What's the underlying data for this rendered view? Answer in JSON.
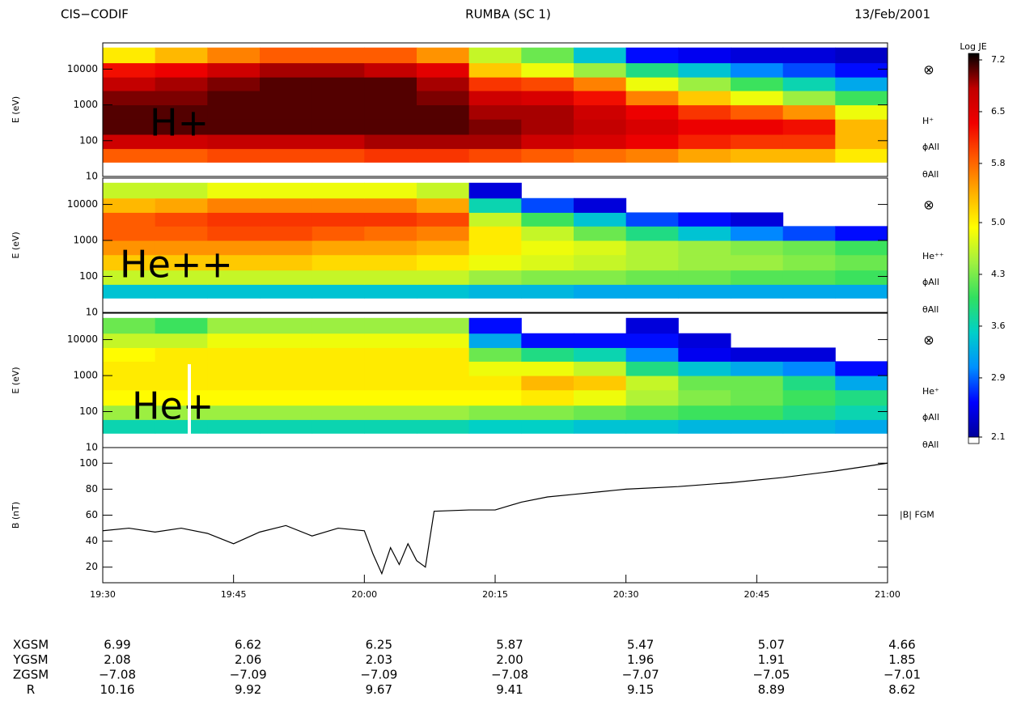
{
  "header": {
    "left": "CIS−CODIF",
    "center": "RUMBA (SC 1)",
    "right": "13/Feb/2001"
  },
  "colorbar": {
    "title": "Log JE",
    "zlim": [
      2.1,
      7.2
    ],
    "ticks": [
      2.1,
      2.9,
      3.6,
      4.3,
      {
        "value": 5,
        "label": "5.0"
      },
      5.8,
      6.5,
      7.2
    ],
    "colors": [
      "#00009a",
      "#0000ff",
      "#0090ff",
      "#00d0c8",
      "#30e060",
      "#a0f040",
      "#ffff00",
      "#ffb000",
      "#ff5a00",
      "#f00000",
      "#c00000",
      "#000000"
    ]
  },
  "chart_data": [
    {
      "type": "heatmap",
      "label": "H+",
      "ylabel": "E (eV)",
      "log_y": true,
      "ylim": [
        10,
        54000
      ],
      "yticks": [
        10,
        100,
        1000,
        10000
      ],
      "side_labels": [
        "⊗",
        "H⁺",
        "ϕAll",
        "θAll"
      ],
      "x_bins": [
        "19:30",
        "19:36",
        "19:42",
        "19:48",
        "19:54",
        "20:00",
        "20:06",
        "20:12",
        "20:18",
        "20:24",
        "20:30",
        "20:36",
        "20:42",
        "20:48",
        "20:54",
        "21:00"
      ],
      "y_bins": [
        25,
        60,
        150,
        400,
        1000,
        2500,
        6000,
        15000,
        40000
      ],
      "z": [
        [
          5.8,
          5.8,
          5.9,
          5.9,
          5.9,
          6.0,
          6.0,
          5.9,
          5.8,
          5.7,
          5.6,
          5.4,
          5.3,
          5.3,
          5.0
        ],
        [
          6.6,
          6.6,
          6.7,
          6.7,
          6.7,
          6.8,
          6.8,
          6.8,
          6.6,
          6.5,
          6.3,
          6.1,
          6.0,
          6.0,
          5.3
        ],
        [
          7.0,
          7.0,
          7.0,
          7.0,
          7.0,
          7.0,
          7.0,
          6.9,
          6.8,
          6.7,
          6.5,
          6.3,
          6.3,
          6.2,
          5.3
        ],
        [
          7.0,
          7.0,
          7.0,
          7.0,
          7.0,
          7.0,
          7.0,
          6.8,
          6.8,
          6.6,
          6.3,
          6.0,
          5.8,
          5.5,
          4.8
        ],
        [
          6.9,
          6.9,
          7.0,
          7.0,
          7.0,
          7.0,
          6.9,
          6.6,
          6.5,
          6.2,
          5.6,
          5.2,
          4.8,
          4.4,
          4.0
        ],
        [
          6.7,
          6.8,
          6.9,
          7.0,
          7.0,
          7.0,
          6.8,
          6.0,
          5.9,
          5.6,
          4.8,
          4.4,
          4.0,
          3.6,
          3.2
        ],
        [
          6.2,
          6.3,
          6.6,
          6.8,
          6.8,
          6.7,
          6.4,
          5.2,
          4.8,
          4.4,
          3.8,
          3.4,
          3.0,
          2.8,
          2.6
        ],
        [
          5.0,
          5.3,
          5.6,
          5.8,
          5.8,
          5.8,
          5.5,
          4.6,
          4.2,
          3.4,
          2.6,
          2.5,
          2.4,
          2.4,
          2.3
        ]
      ]
    },
    {
      "type": "heatmap",
      "label": "He++",
      "ylabel": "E (eV)",
      "log_y": true,
      "ylim": [
        10,
        54000
      ],
      "yticks": [
        10,
        100,
        1000,
        10000
      ],
      "side_labels": [
        "⊗",
        "He⁺⁺",
        "ϕAll",
        "θAll"
      ],
      "x_bins": [
        "19:30",
        "19:36",
        "19:42",
        "19:48",
        "19:54",
        "20:00",
        "20:06",
        "20:12",
        "20:18",
        "20:24",
        "20:30",
        "20:36",
        "20:42",
        "20:48",
        "20:54",
        "21:00"
      ],
      "y_bins": [
        25,
        60,
        150,
        400,
        1000,
        2500,
        6000,
        15000,
        40000
      ],
      "z": [
        [
          3.4,
          3.4,
          3.4,
          3.4,
          3.4,
          3.4,
          3.4,
          3.3,
          3.3,
          3.2,
          3.2,
          3.2,
          3.2,
          3.2,
          3.2
        ],
        [
          4.6,
          4.6,
          4.6,
          4.6,
          4.6,
          4.6,
          4.6,
          4.4,
          4.3,
          4.3,
          4.2,
          4.2,
          4.1,
          4.1,
          4.0
        ],
        [
          5.2,
          5.2,
          5.2,
          5.2,
          5.1,
          5.1,
          5.0,
          4.8,
          4.7,
          4.6,
          4.5,
          4.4,
          4.4,
          4.3,
          4.2
        ],
        [
          5.5,
          5.5,
          5.5,
          5.5,
          5.4,
          5.4,
          5.3,
          5.0,
          4.8,
          4.7,
          4.5,
          4.4,
          4.3,
          4.2,
          4.0
        ],
        [
          5.8,
          5.8,
          5.9,
          5.9,
          5.8,
          5.7,
          5.6,
          5.0,
          4.6,
          4.2,
          3.8,
          3.4,
          3.0,
          2.8,
          2.6
        ],
        [
          5.8,
          5.9,
          6.0,
          6.0,
          6.0,
          6.0,
          5.9,
          4.6,
          4.0,
          3.4,
          2.8,
          2.6,
          2.4,
          null,
          null
        ],
        [
          5.3,
          5.4,
          5.6,
          5.6,
          5.6,
          5.6,
          5.4,
          3.6,
          2.8,
          2.4,
          null,
          null,
          null,
          null,
          null
        ],
        [
          4.6,
          4.6,
          4.8,
          4.8,
          4.8,
          4.8,
          4.6,
          2.4,
          null,
          null,
          null,
          null,
          null,
          null,
          null
        ]
      ]
    },
    {
      "type": "heatmap",
      "label": "He+",
      "ylabel": "E (eV)",
      "log_y": true,
      "ylim": [
        10,
        54000
      ],
      "yticks": [
        10,
        100,
        1000,
        10000
      ],
      "side_labels": [
        "⊗",
        "He⁺",
        "ϕAll",
        "θAll"
      ],
      "x_bins": [
        "19:30",
        "19:36",
        "19:42",
        "19:48",
        "19:54",
        "20:00",
        "20:06",
        "20:12",
        "20:18",
        "20:24",
        "20:30",
        "20:36",
        "20:42",
        "20:48",
        "20:54",
        "21:00"
      ],
      "y_bins": [
        25,
        60,
        150,
        400,
        1000,
        2500,
        6000,
        15000,
        40000
      ],
      "z": [
        [
          3.6,
          3.6,
          3.6,
          3.6,
          3.6,
          3.6,
          3.6,
          3.5,
          3.5,
          3.4,
          3.4,
          3.3,
          3.3,
          3.3,
          3.2
        ],
        [
          4.4,
          4.4,
          4.4,
          4.4,
          4.4,
          4.4,
          4.4,
          4.3,
          4.3,
          4.2,
          4.1,
          4.0,
          4.0,
          3.8,
          3.6
        ],
        [
          4.9,
          4.9,
          4.9,
          4.9,
          4.9,
          4.9,
          4.9,
          4.9,
          5.0,
          4.8,
          4.5,
          4.3,
          4.2,
          4.0,
          3.8
        ],
        [
          5.0,
          5.0,
          5.0,
          5.0,
          5.0,
          5.0,
          5.0,
          5.0,
          5.3,
          5.2,
          4.6,
          4.2,
          4.2,
          3.8,
          3.2
        ],
        [
          5.0,
          5.0,
          5.0,
          5.0,
          5.0,
          5.0,
          5.0,
          4.8,
          4.8,
          4.6,
          3.8,
          3.4,
          3.2,
          3.0,
          2.6
        ],
        [
          4.9,
          5.0,
          5.0,
          5.0,
          5.0,
          5.0,
          5.0,
          4.2,
          3.8,
          3.6,
          3.0,
          2.5,
          2.4,
          2.4,
          null
        ],
        [
          4.6,
          4.6,
          4.8,
          4.8,
          4.8,
          4.8,
          4.8,
          3.2,
          2.6,
          2.6,
          2.6,
          2.4,
          null,
          null,
          null
        ],
        [
          4.2,
          4.0,
          4.4,
          4.4,
          4.4,
          4.4,
          4.4,
          2.6,
          null,
          null,
          2.4,
          null,
          null,
          null,
          null
        ]
      ]
    },
    {
      "type": "line",
      "ylabel": "B (nT)",
      "side_label": "|B| FGM",
      "color": "#000000",
      "xlim": [
        "19:30",
        "21:00"
      ],
      "xticks": [
        "19:30",
        "19:45",
        "20:00",
        "20:15",
        "20:30",
        "20:45",
        "21:00"
      ],
      "ylim": [
        8,
        112
      ],
      "yticks": [
        20,
        40,
        60,
        80,
        100
      ],
      "x": [
        "19:30",
        "19:33",
        "19:36",
        "19:39",
        "19:42",
        "19:45",
        "19:48",
        "19:51",
        "19:54",
        "19:57",
        "20:00",
        "20:01",
        "20:02",
        "20:03",
        "20:04",
        "20:05",
        "20:06",
        "20:07",
        "20:08",
        "20:12",
        "20:15",
        "20:18",
        "20:21",
        "20:24",
        "20:27",
        "20:30",
        "20:36",
        "20:42",
        "20:48",
        "20:54",
        "21:00"
      ],
      "values": [
        48,
        50,
        47,
        50,
        46,
        38,
        47,
        52,
        44,
        50,
        48,
        30,
        15,
        35,
        22,
        38,
        25,
        20,
        63,
        64,
        64,
        70,
        74,
        76,
        78,
        80,
        82,
        85,
        89,
        94,
        100
      ]
    }
  ],
  "ephemeris": {
    "rows": [
      [
        "XGSM",
        "6.99",
        "6.62",
        "6.25",
        "5.87",
        "5.47",
        "5.07",
        "4.66"
      ],
      [
        "YGSM",
        "2.08",
        "2.06",
        "2.03",
        "2.00",
        "1.96",
        "1.91",
        "1.85"
      ],
      [
        "ZGSM",
        "−7.08",
        "−7.09",
        "−7.09",
        "−7.08",
        "−7.07",
        "−7.05",
        "−7.01"
      ],
      [
        "R",
        "10.16",
        "9.92",
        "9.67",
        "9.41",
        "9.15",
        "8.89",
        "8.62"
      ]
    ]
  }
}
